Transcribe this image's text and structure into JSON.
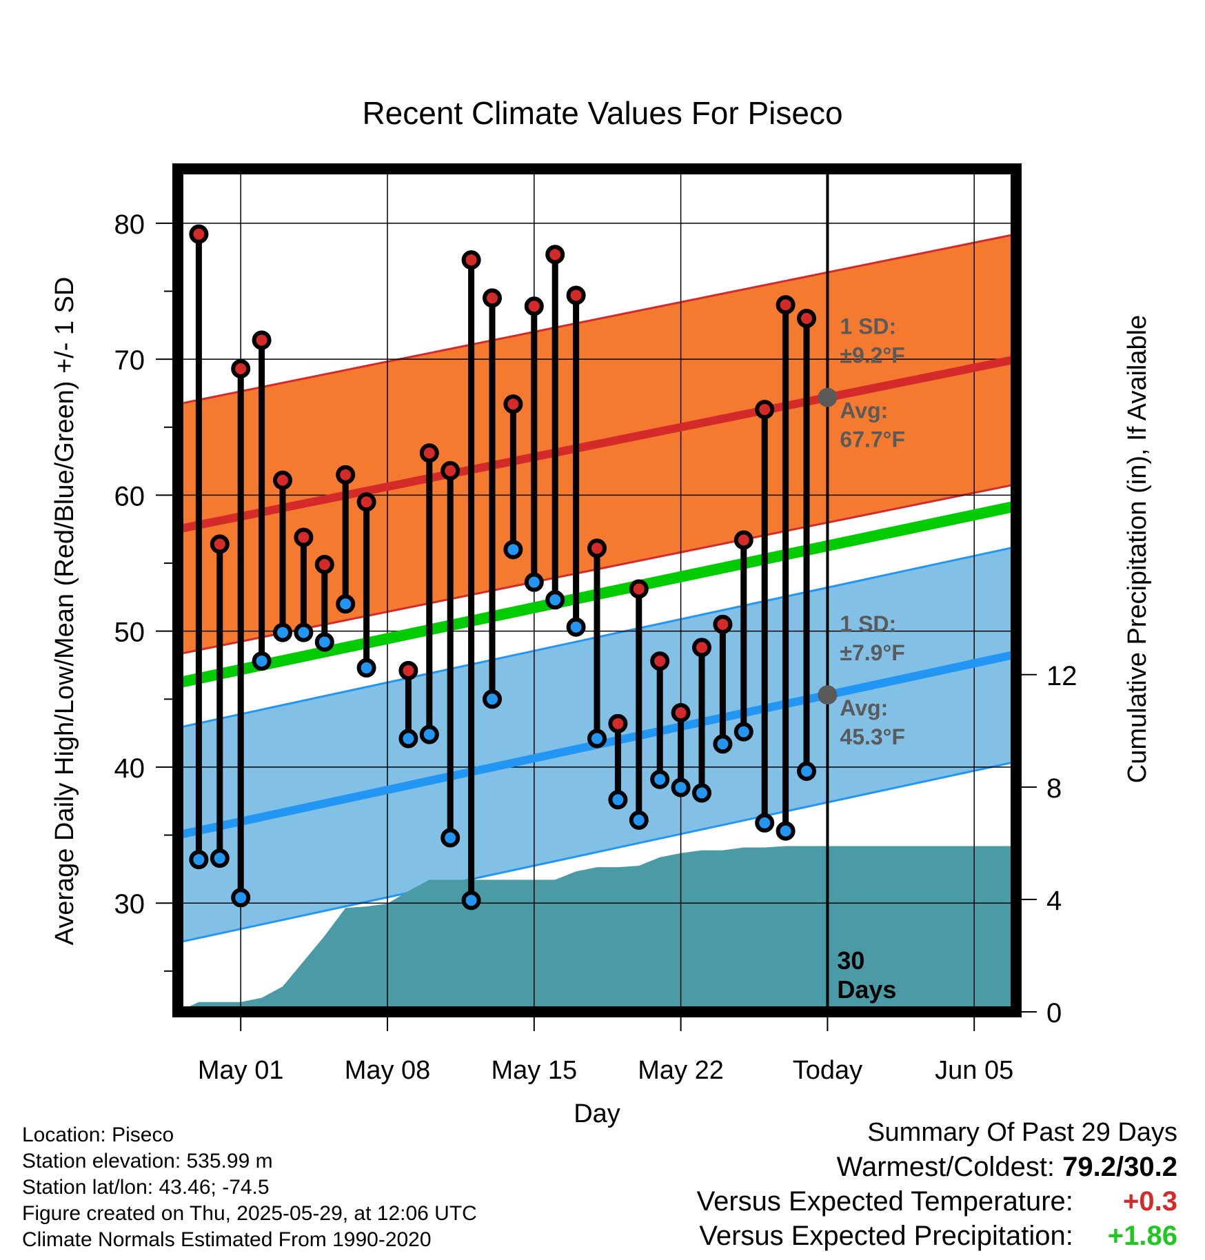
{
  "chart_data": {
    "type": "line",
    "title": "Recent Climate Values For Piseco",
    "xlabel": "Day",
    "ylabel": "Average Daily High/Low/Mean (Red/Blue/Green) +/- 1 SD",
    "y2label": "Cumulative Precipitation (in), If Available",
    "x_tick_labels": [
      "May 01",
      "May 08",
      "May 15",
      "May 22",
      "Today",
      "Jun 05"
    ],
    "x_tick_dates": [
      "2025-05-01",
      "2025-05-08",
      "2025-05-15",
      "2025-05-22",
      "2025-05-29",
      "2025-06-05"
    ],
    "xlim": [
      "2025-04-28",
      "2025-06-07"
    ],
    "ylim": [
      22,
      84
    ],
    "y_ticks": [
      30,
      40,
      50,
      60,
      70,
      80
    ],
    "y2lim": [
      0,
      30
    ],
    "y2_ticks": [
      0,
      4,
      8,
      12
    ],
    "grid": true,
    "today": "2025-05-29",
    "today_label": "30 Days",
    "colors": {
      "high": "#d42a2a",
      "low": "#2196f3",
      "mean": "#00cc00",
      "high_band": "#f47a30",
      "low_band": "#82c0e6",
      "precip": "#4a9ba6",
      "annotation": "#5a5a5a"
    },
    "observed": {
      "dates": [
        "2025-04-29",
        "2025-04-30",
        "2025-05-01",
        "2025-05-02",
        "2025-05-03",
        "2025-05-04",
        "2025-05-05",
        "2025-05-06",
        "2025-05-07",
        "2025-05-09",
        "2025-05-10",
        "2025-05-11",
        "2025-05-12",
        "2025-05-13",
        "2025-05-14",
        "2025-05-15",
        "2025-05-16",
        "2025-05-17",
        "2025-05-18",
        "2025-05-19",
        "2025-05-20",
        "2025-05-21",
        "2025-05-22",
        "2025-05-23",
        "2025-05-24",
        "2025-05-25",
        "2025-05-26",
        "2025-05-27",
        "2025-05-28"
      ],
      "high": [
        79.2,
        56.4,
        69.3,
        71.4,
        61.1,
        56.9,
        54.9,
        61.5,
        59.5,
        47.1,
        63.1,
        61.8,
        77.3,
        74.5,
        66.7,
        73.9,
        77.7,
        74.7,
        56.1,
        43.2,
        53.1,
        47.8,
        44.0,
        48.8,
        50.5,
        56.7,
        66.3,
        74.0,
        73.0
      ],
      "low": [
        33.2,
        33.3,
        30.4,
        47.8,
        49.9,
        49.9,
        49.2,
        52.0,
        47.3,
        42.1,
        42.4,
        34.8,
        30.2,
        45.0,
        56.0,
        53.6,
        52.3,
        50.3,
        42.1,
        37.6,
        36.1,
        39.1,
        38.5,
        38.1,
        41.7,
        42.6,
        35.9,
        35.3,
        39.7
      ]
    },
    "normals": {
      "dates": [
        "2025-04-28",
        "2025-06-07"
      ],
      "high_avg": [
        57.5,
        70.0
      ],
      "low_avg": [
        35.0,
        48.3
      ],
      "mean": [
        46.2,
        59.2
      ],
      "high_sd": 9.2,
      "low_sd": 7.9
    },
    "precip": {
      "dates": [
        "2025-04-28",
        "2025-04-29",
        "2025-04-30",
        "2025-05-01",
        "2025-05-02",
        "2025-05-03",
        "2025-05-04",
        "2025-05-05",
        "2025-05-06",
        "2025-05-07",
        "2025-05-08",
        "2025-05-09",
        "2025-05-10",
        "2025-05-11",
        "2025-05-12",
        "2025-05-13",
        "2025-05-14",
        "2025-05-15",
        "2025-05-16",
        "2025-05-17",
        "2025-05-18",
        "2025-05-19",
        "2025-05-20",
        "2025-05-21",
        "2025-05-22",
        "2025-05-23",
        "2025-05-24",
        "2025-05-25",
        "2025-05-26",
        "2025-05-27",
        "2025-05-28",
        "2025-06-07"
      ],
      "values": [
        0.0,
        0.35,
        0.35,
        0.35,
        0.5,
        0.9,
        1.8,
        2.7,
        3.7,
        3.75,
        3.85,
        4.3,
        4.7,
        4.7,
        4.7,
        4.7,
        4.7,
        4.7,
        4.7,
        5.0,
        5.15,
        5.15,
        5.2,
        5.5,
        5.65,
        5.75,
        5.75,
        5.85,
        5.85,
        5.9,
        5.9,
        5.9
      ]
    },
    "annotations": {
      "high_sd_label": "1 SD:",
      "high_sd_value": "±9.2°F",
      "high_avg_label": "Avg:",
      "high_avg_value": "67.7°F",
      "low_sd_label": "1 SD:",
      "low_sd_value": "±7.9°F",
      "low_avg_label": "Avg:",
      "low_avg_value": "45.3°F",
      "today_days": "30",
      "today_days_unit": "Days"
    }
  },
  "info": {
    "location": "Location: Piseco",
    "elevation": "Station elevation: 535.99 m",
    "latlon": "Station lat/lon: 43.46; -74.5",
    "created": "Figure created on Thu, 2025-05-29, at 12:06 UTC",
    "normals": "Climate Normals Estimated From 1990-2020"
  },
  "summary": {
    "header": "Summary Of Past 29 Days",
    "warm_cold_label": "Warmest/Coldest:",
    "warm_cold_value": "79.2/30.2",
    "temp_label": "Versus Expected Temperature:",
    "temp_value": "+0.3",
    "temp_color": "#d42a2a",
    "precip_label": "Versus Expected Precipitation:",
    "precip_value": "+1.86",
    "precip_color": "#1ec81e"
  }
}
